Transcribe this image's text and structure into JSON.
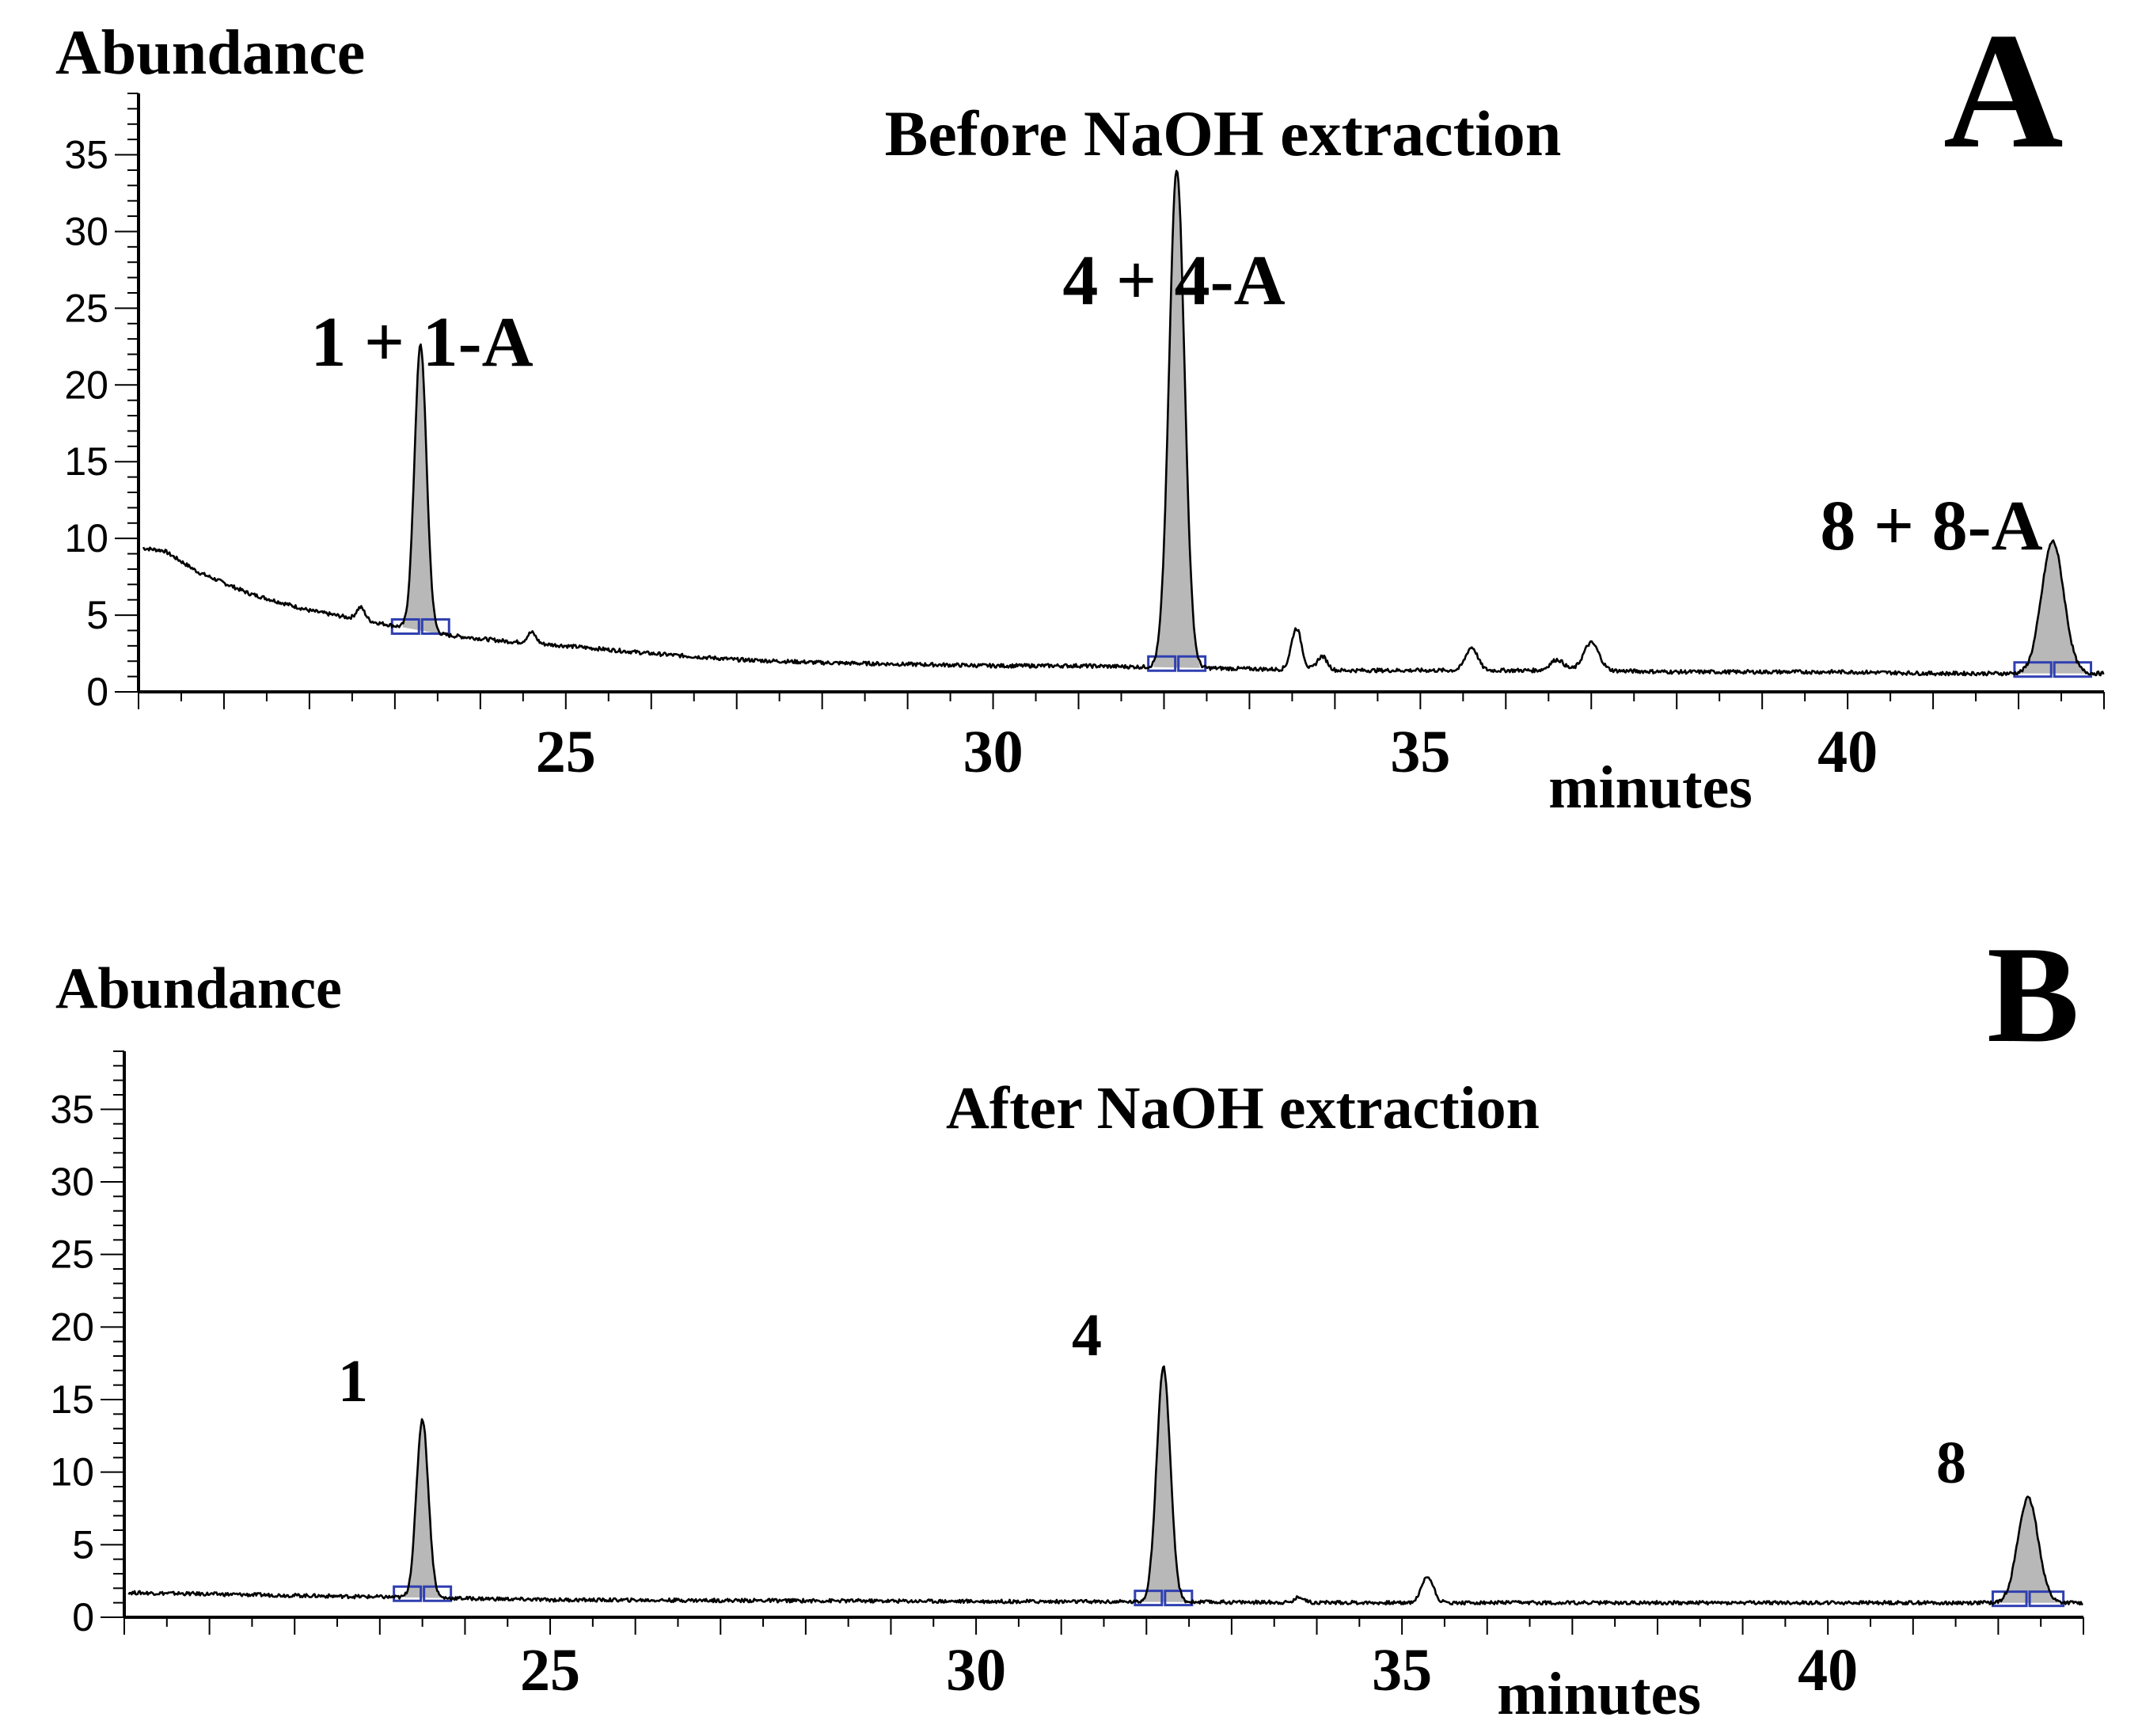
{
  "chart_data": [
    {
      "type": "line",
      "panel_label": "A",
      "title": "Before NaOH extraction",
      "ylabel": "Abundance",
      "xlabel": "minutes",
      "xlim": [
        20.0,
        43.0
      ],
      "ylim": [
        0,
        39
      ],
      "x_ticks": [
        25,
        30,
        35,
        40
      ],
      "y_ticks": [
        0,
        5,
        10,
        15,
        20,
        25,
        30,
        35
      ],
      "baseline": [
        [
          20.0,
          9.4
        ],
        [
          20.3,
          9.2
        ],
        [
          20.7,
          7.8
        ],
        [
          21.3,
          6.4
        ],
        [
          22.0,
          5.3
        ],
        [
          22.5,
          4.8
        ],
        [
          23.0,
          4.3
        ],
        [
          23.6,
          3.7
        ],
        [
          24.3,
          3.3
        ],
        [
          25.0,
          3.0
        ],
        [
          26.0,
          2.5
        ],
        [
          27.0,
          2.1
        ],
        [
          28.0,
          1.9
        ],
        [
          29.0,
          1.8
        ],
        [
          30.0,
          1.7
        ],
        [
          31.0,
          1.7
        ],
        [
          32.0,
          1.6
        ],
        [
          33.0,
          1.5
        ],
        [
          34.0,
          1.4
        ],
        [
          35.0,
          1.4
        ],
        [
          36.0,
          1.4
        ],
        [
          37.0,
          1.4
        ],
        [
          38.0,
          1.3
        ],
        [
          39.0,
          1.3
        ],
        [
          40.0,
          1.3
        ],
        [
          41.0,
          1.2
        ],
        [
          42.0,
          1.2
        ],
        [
          43.0,
          1.2
        ]
      ],
      "peaks": [
        {
          "label": "1 + 1-A",
          "x": 23.3,
          "height": 18.6,
          "width": 0.07,
          "filled": true
        },
        {
          "label": "",
          "x": 22.6,
          "height": 0.8,
          "width": 0.05,
          "filled": false
        },
        {
          "label": "",
          "x": 24.6,
          "height": 0.7,
          "width": 0.05,
          "filled": false
        },
        {
          "label": "4 + 4-A",
          "x": 32.15,
          "height": 32.5,
          "width": 0.09,
          "filled": true
        },
        {
          "label": "",
          "x": 33.55,
          "height": 2.7,
          "width": 0.06,
          "filled": false
        },
        {
          "label": "",
          "x": 33.85,
          "height": 0.9,
          "width": 0.06,
          "filled": false
        },
        {
          "label": "",
          "x": 35.6,
          "height": 1.5,
          "width": 0.07,
          "filled": false
        },
        {
          "label": "",
          "x": 36.6,
          "height": 0.7,
          "width": 0.08,
          "filled": false
        },
        {
          "label": "",
          "x": 37.0,
          "height": 1.8,
          "width": 0.09,
          "filled": false
        },
        {
          "label": "8 + 8-A",
          "x": 42.4,
          "height": 8.6,
          "width": 0.13,
          "filled": true
        }
      ]
    },
    {
      "type": "line",
      "panel_label": "B",
      "title": "After NaOH extraction",
      "ylabel": "Abundance",
      "xlabel": "minutes",
      "xlim": [
        20.0,
        43.0
      ],
      "ylim": [
        0,
        39
      ],
      "x_ticks": [
        25,
        30,
        35,
        40
      ],
      "y_ticks": [
        0,
        5,
        10,
        15,
        20,
        25,
        30,
        35
      ],
      "baseline": [
        [
          20.0,
          1.7
        ],
        [
          22.0,
          1.5
        ],
        [
          25.0,
          1.2
        ],
        [
          30.0,
          1.1
        ],
        [
          35.0,
          1.0
        ],
        [
          40.0,
          1.0
        ],
        [
          43.0,
          1.0
        ]
      ],
      "peaks": [
        {
          "label": "1",
          "x": 23.5,
          "height": 12.3,
          "width": 0.07,
          "filled": true
        },
        {
          "label": "4",
          "x": 32.2,
          "height": 16.2,
          "width": 0.08,
          "filled": true
        },
        {
          "label": "",
          "x": 35.3,
          "height": 1.8,
          "width": 0.07,
          "filled": false
        },
        {
          "label": "",
          "x": 33.8,
          "height": 0.4,
          "width": 0.05,
          "filled": false
        },
        {
          "label": "8",
          "x": 42.35,
          "height": 7.2,
          "width": 0.12,
          "filled": true
        }
      ]
    }
  ]
}
